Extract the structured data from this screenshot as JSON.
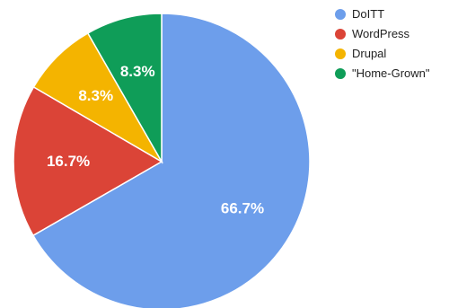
{
  "chart_data": {
    "type": "pie",
    "title": "",
    "legend_position": "top-right",
    "series": [
      {
        "name": "DoITT",
        "value": 66.7,
        "label": "66.7%",
        "color": "#6d9eeb"
      },
      {
        "name": "WordPress",
        "value": 16.7,
        "label": "16.7%",
        "color": "#db4437"
      },
      {
        "name": "Drupal",
        "value": 8.3,
        "label": "8.3%",
        "color": "#f4b400"
      },
      {
        "name": "\"Home-Grown\"",
        "value": 8.3,
        "label": "8.3%",
        "color": "#0f9d58"
      }
    ]
  }
}
